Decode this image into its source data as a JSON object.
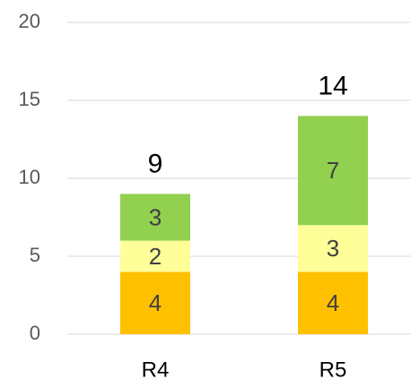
{
  "chart_data": {
    "type": "stacked_bar",
    "categories": [
      "R4",
      "R5"
    ],
    "series": [
      {
        "color": "#FFC000",
        "values": [
          4,
          4
        ]
      },
      {
        "color": "#FFFF99",
        "values": [
          2,
          3
        ]
      },
      {
        "color": "#92D050",
        "values": [
          3,
          7
        ]
      }
    ],
    "totals": [
      9,
      14
    ],
    "ylim": [
      0,
      20
    ],
    "yticks": [
      0,
      5,
      10,
      15,
      20
    ],
    "grid": true
  }
}
